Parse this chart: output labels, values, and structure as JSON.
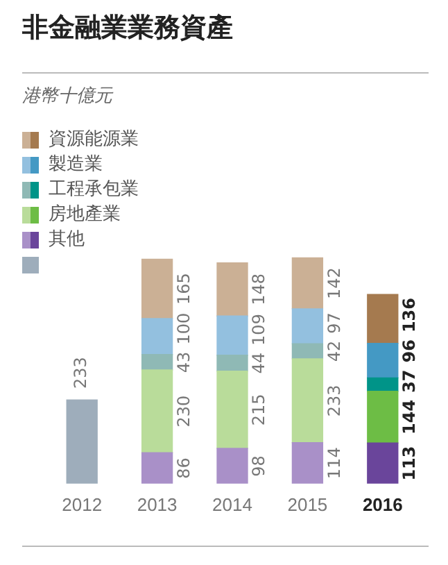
{
  "chart_data": {
    "type": "bar",
    "title": "非金融業業務資產",
    "subtitle": "港幣十億元",
    "categories": [
      "2012",
      "2013",
      "2014",
      "2015",
      "2016"
    ],
    "stacked": true,
    "data_labels": true,
    "legend": "top left",
    "tick_labels": "x",
    "grid": false,
    "series": [
      {
        "colors": [
          "#9eadbb",
          null,
          null,
          null,
          null
        ],
        "values": [
          233,
          null,
          null,
          null,
          null
        ]
      },
      {
        "name": "其他",
        "colors": [
          null,
          "#a990c8",
          "#a990c8",
          "#a990c8",
          "#6a459b"
        ],
        "values": [
          null,
          86,
          98,
          114,
          113
        ]
      },
      {
        "name": "房地產業",
        "colors": [
          null,
          "#b9dc9a",
          "#b9dc9a",
          "#b9dc9a",
          "#6dbd45"
        ],
        "values": [
          null,
          230,
          215,
          233,
          144
        ]
      },
      {
        "name": "工程承包業",
        "colors": [
          null,
          "#8fb9b5",
          "#8fb9b5",
          "#8fb9b5",
          "#009488"
        ],
        "values": [
          null,
          43,
          44,
          42,
          37
        ]
      },
      {
        "name": "製造業",
        "colors": [
          null,
          "#93c0df",
          "#93c0df",
          "#93c0df",
          "#4499c4"
        ],
        "values": [
          null,
          100,
          109,
          97,
          96
        ]
      },
      {
        "name": "資源能源業",
        "colors": [
          null,
          "#cbb095",
          "#cbb095",
          "#cbb095",
          "#a57a4f"
        ],
        "values": [
          null,
          165,
          148,
          142,
          136
        ]
      }
    ]
  }
}
